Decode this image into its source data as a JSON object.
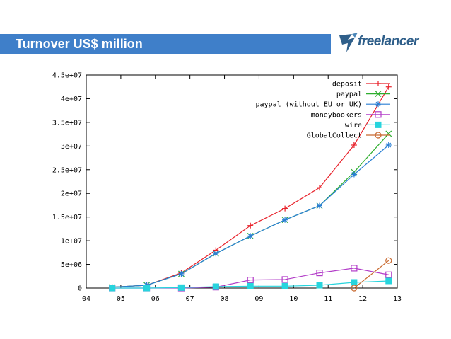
{
  "header": {
    "title": "Turnover US$ million",
    "logo_text": "freelancer",
    "title_bar_color": "#3f7fc9",
    "logo_color": "#2f5f8a"
  },
  "chart_data": {
    "type": "line",
    "title": "",
    "xlabel": "",
    "ylabel": "",
    "xlim": [
      4,
      13
    ],
    "ylim": [
      0,
      45000000
    ],
    "x_ticks": [
      4,
      5,
      6,
      7,
      8,
      9,
      10,
      11,
      12,
      13
    ],
    "x_tick_labels": [
      "04",
      "05",
      "06",
      "07",
      "08",
      "09",
      "10",
      "11",
      "12",
      "13"
    ],
    "y_ticks": [
      0,
      5000000,
      10000000,
      15000000,
      20000000,
      25000000,
      30000000,
      35000000,
      40000000,
      45000000
    ],
    "y_tick_labels": [
      "0",
      "5e+06",
      "1e+07",
      "1.5e+07",
      "2e+07",
      "2.5e+07",
      "3e+07",
      "3.5e+07",
      "4e+07",
      "4.5e+07"
    ],
    "grid": false,
    "legend_position": "top-right",
    "series": [
      {
        "name": "deposit",
        "color": "#e8212a",
        "marker": "plus",
        "x": [
          4.75,
          5.75,
          6.75,
          7.75,
          8.75,
          9.75,
          10.75,
          11.75,
          12.75
        ],
        "y": [
          200000,
          600000,
          3200000,
          8000000,
          13200000,
          16800000,
          21200000,
          30200000,
          42500000
        ]
      },
      {
        "name": "paypal",
        "color": "#2eae2e",
        "marker": "x",
        "x": [
          4.75,
          5.75,
          6.75,
          7.75,
          8.75,
          9.75,
          10.75,
          11.75,
          12.75
        ],
        "y": [
          200000,
          600000,
          3000000,
          7300000,
          11000000,
          14400000,
          17400000,
          24500000,
          32600000
        ]
      },
      {
        "name": "paypal (without EU or UK)",
        "color": "#2a7fd4",
        "marker": "star",
        "x": [
          4.75,
          5.75,
          6.75,
          7.75,
          8.75,
          9.75,
          10.75,
          11.75,
          12.75
        ],
        "y": [
          200000,
          600000,
          3000000,
          7300000,
          11000000,
          14400000,
          17400000,
          24000000,
          30200000
        ]
      },
      {
        "name": "moneybookers",
        "color": "#b23cc8",
        "marker": "open-square",
        "x": [
          4.75,
          5.75,
          6.75,
          7.75,
          8.75,
          9.75,
          10.75,
          11.75,
          12.75
        ],
        "y": [
          0,
          0,
          0,
          200000,
          1700000,
          1800000,
          3200000,
          4200000,
          2800000
        ]
      },
      {
        "name": "wire",
        "color": "#27d4dd",
        "marker": "filled-square",
        "x": [
          4.75,
          5.75,
          6.75,
          7.75,
          8.75,
          9.75,
          10.75,
          11.75,
          12.75
        ],
        "y": [
          0,
          0,
          100000,
          300000,
          400000,
          400000,
          600000,
          1200000,
          1500000
        ]
      },
      {
        "name": "GlobalCollect",
        "color": "#c8682e",
        "marker": "open-circle",
        "x": [
          11.75,
          12.75
        ],
        "y": [
          0,
          5800000
        ]
      }
    ]
  }
}
